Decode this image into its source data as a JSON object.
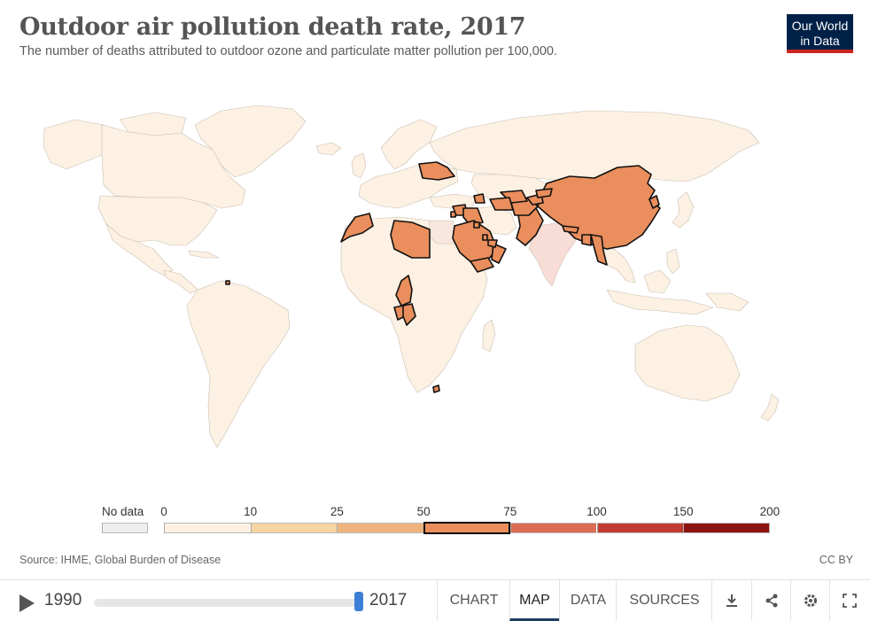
{
  "header": {
    "title": "Outdoor air pollution death rate, 2017",
    "subtitle": "The number of deaths attributed to outdoor ozone and particulate matter pollution per 100,000."
  },
  "logo": {
    "line1": "Our World",
    "line2": "in Data"
  },
  "colors": {
    "ocean": "#ffffff",
    "nodata": "#eeeeee",
    "bin_0_10": "#fdf2e2",
    "bin_10_25": "#f6d4a4",
    "bin_25_50": "#efb47d",
    "bin_50_75": "#e98e5c",
    "bin_75_100": "#db6c55",
    "bin_100_150": "#c03c30",
    "bin_150_200": "#8b1412",
    "india": "#f7ddd5",
    "egypt": "#f9e6df",
    "land_default": "#fcf1e3",
    "highlight_border": "#111111"
  },
  "legend": {
    "nodata_label": "No data",
    "ticks": [
      "0",
      "10",
      "25",
      "50",
      "75",
      "100",
      "150",
      "200"
    ],
    "highlighted_bin": "50-75"
  },
  "footer": {
    "source": "Source: IHME, Global Burden of Disease",
    "license": "CC BY"
  },
  "timeline": {
    "start_year": "1990",
    "end_year": "2017",
    "position": 1.0
  },
  "tabs": [
    {
      "label": "CHART",
      "active": false
    },
    {
      "label": "MAP",
      "active": true
    },
    {
      "label": "DATA",
      "active": false
    },
    {
      "label": "SOURCES",
      "active": false
    }
  ],
  "icons": [
    "download-icon",
    "share-icon",
    "settings-icon",
    "fullscreen-icon"
  ],
  "highlighted_countries": [
    "Morocco",
    "Libya",
    "Cameroon",
    "Congo",
    "Gabon",
    "Eswatini",
    "Trinidad and Tobago",
    "Ukraine",
    "Lebanon",
    "Syria",
    "Saudi Arabia",
    "Yemen",
    "Oman",
    "United Arab Emirates",
    "Qatar",
    "Kuwait",
    "Iraq",
    "Azerbaijan",
    "Turkmenistan",
    "Uzbekistan",
    "Tajikistan",
    "Kyrgyzstan",
    "Afghanistan",
    "Pakistan",
    "China",
    "Bangladesh",
    "Myanmar",
    "Nepal",
    "North Korea"
  ]
}
